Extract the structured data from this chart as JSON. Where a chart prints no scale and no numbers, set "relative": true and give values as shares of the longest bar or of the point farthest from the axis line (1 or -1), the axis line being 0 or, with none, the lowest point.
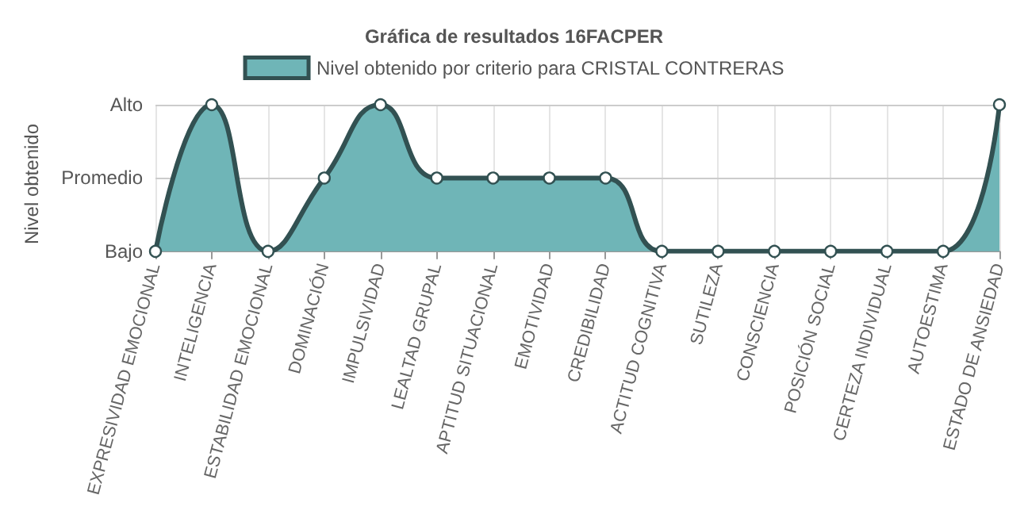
{
  "chart_data": {
    "type": "area",
    "title": "Gráfica de resultados 16FACPER",
    "ylabel": "Nivel obtenido",
    "relative": true,
    "categories": [
      "EXPRESIVIDAD EMOCIONAL",
      "INTELIGENCIA",
      "ESTABILIDAD EMOCIONAL",
      "DOMINACIÓN",
      "IMPULSIVIDAD",
      "LEALTAD GRUPAL",
      "APTITUD SITUACIONAL",
      "EMOTIVIDAD",
      "CREDIBILIDAD",
      "ACTITUD COGNITIVA",
      "SUTILEZA",
      "CONSCIENCIA",
      "POSICIÓN SOCIAL",
      "CERTEZA INDIVIDUAL",
      "AUTOESTIMA",
      "ESTADO DE ANSIEDAD"
    ],
    "series": [
      {
        "name": "Nivel obtenido por criterio para CRISTAL CONTRERAS",
        "color": "#6fb5b7",
        "values": [
          0,
          1,
          0,
          0.5,
          1,
          0.5,
          0.5,
          0.5,
          0.5,
          0,
          0,
          0,
          0,
          0,
          0,
          1
        ]
      }
    ],
    "ref_lines": [
      {
        "axis": "y",
        "value": 1,
        "label": "Alto",
        "color": "#cccccc"
      },
      {
        "axis": "y",
        "value": 0.5,
        "label": "Promedio",
        "color": "#cccccc"
      }
    ],
    "annotations": [
      "Bajo"
    ],
    "grid": true,
    "legend": "top",
    "marker": "circle"
  }
}
